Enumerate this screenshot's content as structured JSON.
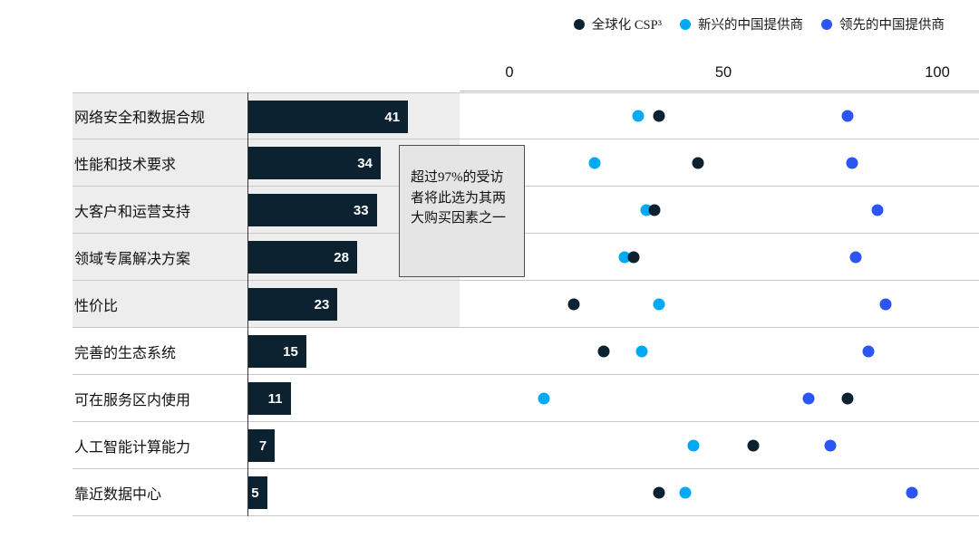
{
  "legend": {
    "items": [
      {
        "label": "全球化 CSP³",
        "color": "#0d2231"
      },
      {
        "label": "新兴的中国提供商",
        "color": "#00aaf2"
      },
      {
        "label": "领先的中国提供商",
        "color": "#2c55f5"
      }
    ]
  },
  "annotation": {
    "text": "超过97%的受访者将此选为其两大购买因素之一"
  },
  "chart_data": [
    {
      "type": "bar",
      "title": "",
      "orientation": "horizontal",
      "categories": [
        "网络安全和数据合规",
        "性能和技术要求",
        "大客户和运营支持",
        "领域专属解决方案",
        "性价比",
        "完善的生态系统",
        "可在服务区内使用",
        "人工智能计算能力",
        "靠近数据中心"
      ],
      "values": [
        41,
        34,
        33,
        28,
        23,
        15,
        11,
        7,
        5
      ],
      "bar_color": "#0d2231",
      "highlight_band_rows": 5
    },
    {
      "type": "scatter",
      "title": "",
      "categories": [
        "网络安全和数据合规",
        "性能和技术要求",
        "大客户和运营支持",
        "领域专属解决方案",
        "性价比",
        "完善的生态系统",
        "可在服务区内使用",
        "人工智能计算能力",
        "靠近数据中心"
      ],
      "x_ticks": [
        0,
        50,
        100
      ],
      "xlim": [
        0,
        100
      ],
      "grid": false,
      "legend_position": "top-right",
      "series": [
        {
          "name": "全球化 CSP³",
          "color": "#0d2231",
          "values": [
            35,
            44,
            34,
            29,
            15,
            22,
            79,
            57,
            35
          ]
        },
        {
          "name": "新兴的中国提供商",
          "color": "#00aaf2",
          "values": [
            30,
            20,
            32,
            27,
            35,
            31,
            8,
            43,
            41
          ]
        },
        {
          "name": "领先的中国提供商",
          "color": "#2c55f5",
          "values": [
            79,
            80,
            86,
            81,
            88,
            84,
            70,
            75,
            94
          ]
        }
      ]
    }
  ]
}
